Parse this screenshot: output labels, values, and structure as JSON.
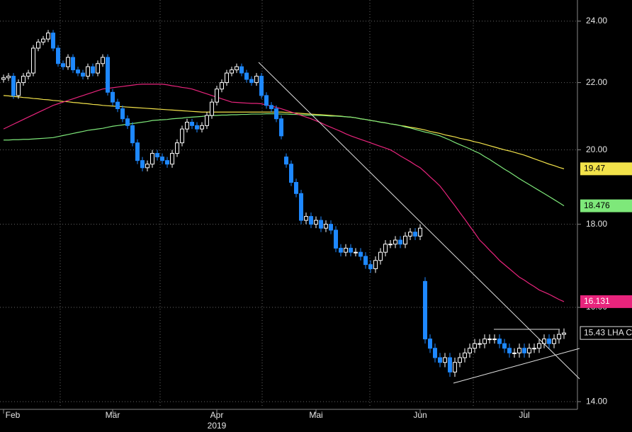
{
  "chart_data": {
    "type": "candlestick",
    "log_scale": true,
    "grid": true,
    "up_color": "#ffffff",
    "down_color": "#1e88ff",
    "ylim": [
      13.89,
      24.73
    ],
    "yticks": [
      {
        "value": 14,
        "label": "14.00"
      },
      {
        "value": 16,
        "label": "16.00"
      },
      {
        "value": 18,
        "label": "18.00"
      },
      {
        "value": 20,
        "label": "20.00"
      },
      {
        "value": 22,
        "label": "22.00"
      },
      {
        "value": 24,
        "label": "24.00"
      }
    ],
    "year_label": "2019",
    "year_category": 43,
    "last_price_label": "15.43 LHA C",
    "categories": [
      "Feb",
      null,
      null,
      null,
      null,
      null,
      null,
      null,
      null,
      null,
      null,
      null,
      null,
      null,
      null,
      null,
      null,
      null,
      null,
      null,
      null,
      null,
      "Mär",
      null,
      null,
      null,
      null,
      null,
      null,
      null,
      null,
      null,
      null,
      null,
      null,
      null,
      null,
      null,
      null,
      null,
      null,
      null,
      null,
      "Apr",
      null,
      null,
      null,
      null,
      null,
      null,
      null,
      null,
      null,
      null,
      null,
      null,
      null,
      null,
      null,
      null,
      null,
      null,
      null,
      "Mai",
      null,
      null,
      null,
      null,
      null,
      null,
      null,
      null,
      null,
      null,
      null,
      null,
      null,
      null,
      null,
      null,
      null,
      null,
      null,
      null,
      "Jun",
      null,
      null,
      null,
      null,
      null,
      null,
      null,
      null,
      null,
      null,
      null,
      null,
      null,
      null,
      null,
      null,
      null,
      null,
      null,
      null,
      "Jul",
      null,
      null,
      null,
      null,
      null,
      null,
      null,
      null
    ],
    "open": [
      22.1,
      22.15,
      22.2,
      21.6,
      22.0,
      22.2,
      22.3,
      23.1,
      23.3,
      23.4,
      23.6,
      23.1,
      22.6,
      22.5,
      22.8,
      22.4,
      22.3,
      22.2,
      22.5,
      22.3,
      22.6,
      22.8,
      21.7,
      21.4,
      21.2,
      20.9,
      20.7,
      20.2,
      19.7,
      19.5,
      19.6,
      19.9,
      19.8,
      19.7,
      19.6,
      19.9,
      20.2,
      20.6,
      20.8,
      20.7,
      20.6,
      20.7,
      21.0,
      21.4,
      21.8,
      22.0,
      22.3,
      22.4,
      22.5,
      22.3,
      22.1,
      22.0,
      22.2,
      21.6,
      21.3,
      21.2,
      20.9,
      19.8,
      19.6,
      19.1,
      18.8,
      18.1,
      18.2,
      18.0,
      18.1,
      17.9,
      18.0,
      17.85,
      17.4,
      17.3,
      17.4,
      17.3,
      17.3,
      17.2,
      17.0,
      16.9,
      17.1,
      17.3,
      17.5,
      17.5,
      17.6,
      17.5,
      17.7,
      17.8,
      17.7,
      16.6,
      15.3,
      15.1,
      14.9,
      14.8,
      14.9,
      14.6,
      14.8,
      14.9,
      15.0,
      15.1,
      15.2,
      15.2,
      15.3,
      15.3,
      15.3,
      15.2,
      15.1,
      15.0,
      15.0,
      15.1,
      15.0,
      15.1,
      15.1,
      15.2,
      15.3,
      15.2,
      15.3,
      15.4
    ],
    "high": [
      22.25,
      22.3,
      22.3,
      22.1,
      22.3,
      22.4,
      23.2,
      23.4,
      23.5,
      23.7,
      23.7,
      23.2,
      22.7,
      22.9,
      22.9,
      22.5,
      22.4,
      22.6,
      22.6,
      22.7,
      22.9,
      22.9,
      21.8,
      21.5,
      21.3,
      21.0,
      20.8,
      20.3,
      19.8,
      19.7,
      20.0,
      20.0,
      19.9,
      19.8,
      20.0,
      20.3,
      20.7,
      20.9,
      20.9,
      20.8,
      20.8,
      21.1,
      21.5,
      21.9,
      22.1,
      22.4,
      22.5,
      22.6,
      22.6,
      22.4,
      22.2,
      22.3,
      22.3,
      21.7,
      21.4,
      21.3,
      21.0,
      19.9,
      19.7,
      19.2,
      18.9,
      18.3,
      18.3,
      18.2,
      18.2,
      18.1,
      18.1,
      17.95,
      17.5,
      17.5,
      17.5,
      17.4,
      17.4,
      17.3,
      17.1,
      17.2,
      17.4,
      17.6,
      17.6,
      17.7,
      17.7,
      17.8,
      17.9,
      17.9,
      18.0,
      16.7,
      15.4,
      15.2,
      15.0,
      15.0,
      15.0,
      14.9,
      15.0,
      15.1,
      15.2,
      15.3,
      15.3,
      15.4,
      15.4,
      15.4,
      15.4,
      15.3,
      15.2,
      15.1,
      15.2,
      15.2,
      15.2,
      15.2,
      15.3,
      15.4,
      15.4,
      15.4,
      15.5,
      15.53
    ],
    "low": [
      22.0,
      22.05,
      21.5,
      21.5,
      21.9,
      22.1,
      22.2,
      23.0,
      23.2,
      23.3,
      23.0,
      22.5,
      22.4,
      22.4,
      22.3,
      22.2,
      22.1,
      22.1,
      22.2,
      22.2,
      22.5,
      21.6,
      21.3,
      21.1,
      20.8,
      20.6,
      20.1,
      19.6,
      19.4,
      19.4,
      19.5,
      19.7,
      19.6,
      19.5,
      19.5,
      19.8,
      20.1,
      20.5,
      20.6,
      20.5,
      20.5,
      20.6,
      20.9,
      21.3,
      21.7,
      21.9,
      22.2,
      22.3,
      22.2,
      22.0,
      21.9,
      21.9,
      21.5,
      21.2,
      21.1,
      20.8,
      20.3,
      19.5,
      19.0,
      18.7,
      18.0,
      18.0,
      17.9,
      17.9,
      17.8,
      17.8,
      17.75,
      17.3,
      17.2,
      17.2,
      17.2,
      17.2,
      17.1,
      16.9,
      16.8,
      16.8,
      17.0,
      17.2,
      17.4,
      17.4,
      17.4,
      17.4,
      17.6,
      17.6,
      17.6,
      15.2,
      15.0,
      14.8,
      14.7,
      14.7,
      14.5,
      14.5,
      14.7,
      14.8,
      14.9,
      15.0,
      15.1,
      15.1,
      15.2,
      15.2,
      15.1,
      15.0,
      14.9,
      14.9,
      14.9,
      14.9,
      14.9,
      15.0,
      15.0,
      15.1,
      15.1,
      15.1,
      15.2,
      15.3
    ],
    "close": [
      22.15,
      22.2,
      21.6,
      22.0,
      22.2,
      22.3,
      23.1,
      23.3,
      23.4,
      23.6,
      23.1,
      22.6,
      22.5,
      22.8,
      22.4,
      22.3,
      22.2,
      22.5,
      22.3,
      22.6,
      22.8,
      21.7,
      21.4,
      21.2,
      20.9,
      20.7,
      20.2,
      19.7,
      19.5,
      19.6,
      19.9,
      19.8,
      19.7,
      19.6,
      19.9,
      20.2,
      20.6,
      20.8,
      20.7,
      20.6,
      20.7,
      21.0,
      21.4,
      21.8,
      22.0,
      22.3,
      22.4,
      22.5,
      22.3,
      22.1,
      22.0,
      22.2,
      21.6,
      21.3,
      21.2,
      20.9,
      20.4,
      19.6,
      19.1,
      18.8,
      18.1,
      18.2,
      18.0,
      18.1,
      17.9,
      18.0,
      17.85,
      17.4,
      17.3,
      17.4,
      17.3,
      17.3,
      17.2,
      17.0,
      16.9,
      17.1,
      17.3,
      17.5,
      17.5,
      17.6,
      17.5,
      17.7,
      17.8,
      17.7,
      17.9,
      15.3,
      15.1,
      14.9,
      14.8,
      14.9,
      14.6,
      14.8,
      14.9,
      15.0,
      15.1,
      15.2,
      15.2,
      15.3,
      15.3,
      15.3,
      15.2,
      15.1,
      15.0,
      15.0,
      15.1,
      15.0,
      15.1,
      15.1,
      15.2,
      15.3,
      15.2,
      15.3,
      15.4,
      15.43
    ],
    "series": [
      {
        "type": "line",
        "color": "#f2e24a",
        "label_text_color": "#000000",
        "values": [
          21.6,
          21.59,
          21.57,
          21.56,
          21.54,
          21.53,
          21.51,
          21.5,
          21.48,
          21.47,
          21.45,
          21.44,
          21.42,
          21.41,
          21.39,
          21.38,
          21.36,
          21.35,
          21.33,
          21.32,
          21.3,
          21.29,
          21.28,
          21.27,
          21.26,
          21.25,
          21.24,
          21.23,
          21.22,
          21.21,
          21.2,
          21.19,
          21.18,
          21.17,
          21.16,
          21.15,
          21.14,
          21.13,
          21.12,
          21.11,
          21.1,
          21.1,
          21.1,
          21.1,
          21.1,
          21.1,
          21.1,
          21.1,
          21.1,
          21.1,
          21.1,
          21.1,
          21.1,
          21.1,
          21.1,
          21.1,
          21.1,
          21.09,
          21.08,
          21.07,
          21.06,
          21.05,
          21.04,
          21.03,
          21.02,
          21.01,
          21.0,
          20.99,
          20.98,
          20.96,
          20.95,
          20.93,
          20.9,
          20.88,
          20.85,
          20.83,
          20.8,
          20.78,
          20.75,
          20.73,
          20.7,
          20.68,
          20.65,
          20.63,
          20.6,
          20.57,
          20.53,
          20.5,
          20.47,
          20.43,
          20.4,
          20.37,
          20.33,
          20.3,
          20.27,
          20.23,
          20.2,
          20.16,
          20.12,
          20.08,
          20.04,
          20.0,
          19.97,
          19.93,
          19.89,
          19.85,
          19.8,
          19.75,
          19.7,
          19.65,
          19.6,
          19.56,
          19.51,
          19.47
        ]
      },
      {
        "type": "line",
        "color": "#7ee87a",
        "label_text_color": "#000000",
        "values": [
          20.28,
          20.28,
          20.29,
          20.29,
          20.3,
          20.3,
          20.31,
          20.32,
          20.33,
          20.34,
          20.35,
          20.38,
          20.41,
          20.44,
          20.47,
          20.5,
          20.53,
          20.56,
          20.58,
          20.6,
          20.62,
          20.65,
          20.68,
          20.7,
          20.72,
          20.74,
          20.76,
          20.78,
          20.8,
          20.82,
          20.85,
          20.86,
          20.87,
          20.88,
          20.9,
          20.91,
          20.92,
          20.94,
          20.95,
          20.96,
          20.97,
          20.99,
          21.0,
          21.0,
          21.01,
          21.01,
          21.02,
          21.02,
          21.03,
          21.03,
          21.04,
          21.04,
          21.04,
          21.05,
          21.05,
          21.05,
          21.04,
          21.04,
          21.03,
          21.03,
          21.02,
          21.01,
          21.01,
          21.0,
          21.0,
          20.99,
          20.98,
          20.98,
          20.97,
          20.96,
          20.95,
          20.93,
          20.9,
          20.88,
          20.85,
          20.83,
          20.8,
          20.78,
          20.75,
          20.73,
          20.7,
          20.66,
          20.63,
          20.59,
          20.55,
          20.51,
          20.48,
          20.44,
          20.4,
          20.34,
          20.28,
          20.21,
          20.15,
          20.09,
          20.03,
          19.96,
          19.9,
          19.81,
          19.73,
          19.64,
          19.55,
          19.46,
          19.38,
          19.29,
          19.2,
          19.12,
          19.04,
          18.96,
          18.88,
          18.8,
          18.72,
          18.64,
          18.56,
          18.476
        ]
      },
      {
        "type": "line",
        "color": "#e8247c",
        "label_text_color": "#ffffff",
        "values": [
          20.6,
          20.67,
          20.74,
          20.81,
          20.88,
          20.95,
          21.02,
          21.09,
          21.16,
          21.23,
          21.3,
          21.35,
          21.4,
          21.45,
          21.5,
          21.55,
          21.6,
          21.65,
          21.7,
          21.75,
          21.8,
          21.82,
          21.84,
          21.86,
          21.88,
          21.9,
          21.92,
          21.94,
          21.95,
          21.95,
          21.95,
          21.95,
          21.95,
          21.93,
          21.9,
          21.88,
          21.85,
          21.83,
          21.8,
          21.75,
          21.7,
          21.65,
          21.6,
          21.55,
          21.5,
          21.45,
          21.4,
          21.39,
          21.38,
          21.37,
          21.36,
          21.36,
          21.35,
          21.31,
          21.28,
          21.24,
          21.2,
          21.15,
          21.1,
          21.05,
          21.0,
          20.95,
          20.9,
          20.84,
          20.78,
          20.71,
          20.65,
          20.59,
          20.53,
          20.46,
          20.4,
          20.35,
          20.3,
          20.25,
          20.2,
          20.15,
          20.1,
          20.05,
          20.0,
          19.92,
          19.83,
          19.75,
          19.67,
          19.58,
          19.5,
          19.38,
          19.25,
          19.13,
          19.0,
          18.83,
          18.65,
          18.48,
          18.3,
          18.13,
          17.95,
          17.78,
          17.6,
          17.48,
          17.35,
          17.23,
          17.1,
          17.0,
          16.9,
          16.8,
          16.7,
          16.63,
          16.55,
          16.48,
          16.4,
          16.35,
          16.3,
          16.24,
          16.18,
          16.131
        ]
      }
    ]
  }
}
